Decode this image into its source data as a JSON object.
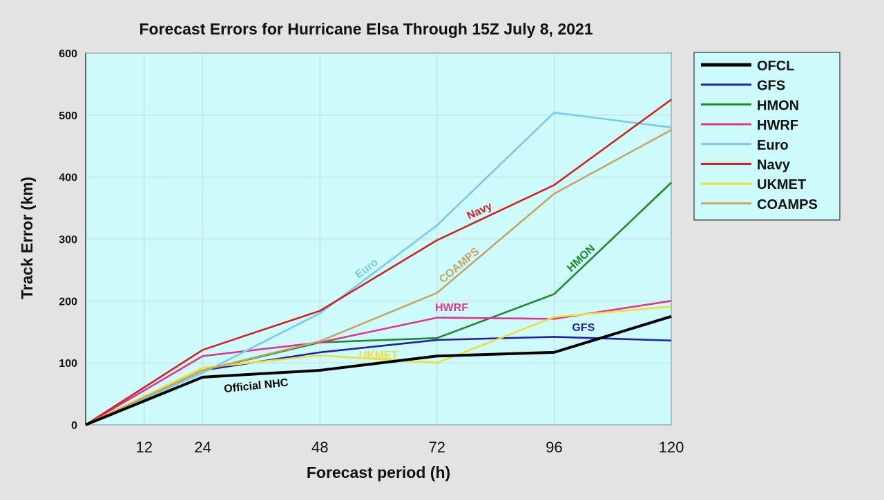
{
  "chart_data": {
    "type": "line",
    "title": "Forecast Errors for Hurricane Elsa Through 15Z July 8, 2021",
    "xlabel": "Forecast period (h)",
    "ylabel": "Track Error (km)",
    "xlim": [
      0,
      120
    ],
    "ylim": [
      0,
      600
    ],
    "x_ticks": [
      12,
      24,
      48,
      72,
      96,
      120
    ],
    "y_ticks": [
      0,
      100,
      200,
      300,
      400,
      500,
      600
    ],
    "grid": true,
    "legend_position": "right, outside plot",
    "plot_background": "#cdfafa",
    "series": [
      {
        "name": "OFCL",
        "color": "#000000",
        "x": [
          0,
          24,
          48,
          72,
          96,
          120
        ],
        "values": [
          0,
          77,
          88,
          111,
          117,
          175
        ]
      },
      {
        "name": "GFS",
        "color": "#1f1fb4",
        "x": [
          0,
          24,
          48,
          72,
          96,
          120
        ],
        "values": [
          0,
          88,
          117,
          137,
          142,
          136
        ]
      },
      {
        "name": "HMON",
        "color": "#1f8a2c",
        "x": [
          0,
          24,
          48,
          72,
          96,
          120
        ],
        "values": [
          0,
          88,
          133,
          140,
          211,
          391
        ]
      },
      {
        "name": "HWRF",
        "color": "#e0358c",
        "x": [
          0,
          24,
          48,
          72,
          96,
          120
        ],
        "values": [
          0,
          111,
          133,
          173,
          171,
          200
        ]
      },
      {
        "name": "Euro",
        "color": "#7cc8ec",
        "x": [
          0,
          24,
          48,
          72,
          96,
          120
        ],
        "values": [
          0,
          84,
          180,
          322,
          504,
          480
        ]
      },
      {
        "name": "Navy",
        "color": "#d42020",
        "x": [
          0,
          24,
          48,
          72,
          96,
          120
        ],
        "values": [
          0,
          121,
          184,
          298,
          387,
          525
        ]
      },
      {
        "name": "UKMET",
        "color": "#eede3a",
        "x": [
          0,
          24,
          48,
          72,
          96,
          120
        ],
        "values": [
          0,
          92,
          112,
          100,
          174,
          191
        ]
      },
      {
        "name": "COAMPS",
        "color": "#c4a565",
        "x": [
          0,
          24,
          48,
          72,
          96,
          120
        ],
        "values": [
          0,
          88,
          135,
          213,
          373,
          476
        ]
      }
    ],
    "annotations": [
      {
        "text": "Euro",
        "series": "Euro",
        "color": "#7cc8ec"
      },
      {
        "text": "Navy",
        "series": "Navy",
        "color": "#d42020"
      },
      {
        "text": "COAMPS",
        "series": "COAMPS",
        "color": "#c4a565"
      },
      {
        "text": "HMON",
        "series": "HMON",
        "color": "#1f8a2c"
      },
      {
        "text": "HWRF",
        "series": "HWRF",
        "color": "#e0358c"
      },
      {
        "text": "GFS",
        "series": "GFS",
        "color": "#1f1fb4"
      },
      {
        "text": "UKMET",
        "series": "UKMET",
        "color": "#eede3a"
      },
      {
        "text": "Official NHC",
        "series": "OFCL",
        "color": "#000000"
      }
    ]
  }
}
